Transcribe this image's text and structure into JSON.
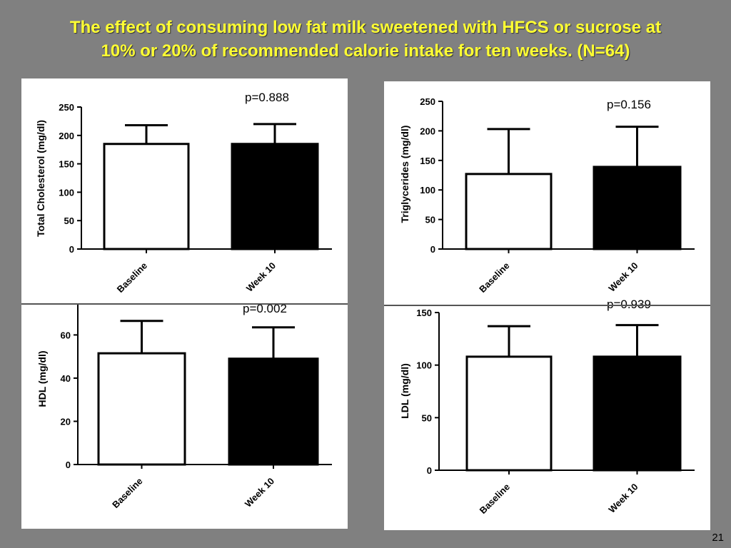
{
  "slide": {
    "title_line1": "The effect of consuming low fat milk sweetened with HFCS or sucrose at",
    "title_line2": "10% or 20% of recommended calorie intake for ten weeks. (N=64)",
    "slide_number": "21",
    "title_color": "#ffff33",
    "background_color": "#808080"
  },
  "chart_data": [
    {
      "type": "bar",
      "ylabel": "Total  Cholesterol (mg/dl)",
      "categories": [
        "Baseline",
        "Week 10"
      ],
      "values": [
        185,
        185
      ],
      "error_upper": [
        218,
        220
      ],
      "bar_colors": [
        "#ffffff",
        "#000000"
      ],
      "ylim": [
        0,
        250
      ],
      "yticks": [
        0,
        50,
        100,
        150,
        200,
        250
      ],
      "annotation": "p=0.888"
    },
    {
      "type": "bar",
      "ylabel": "Triglycerides (mg/dl)",
      "categories": [
        "Baseline",
        "Week 10"
      ],
      "values": [
        127,
        139
      ],
      "error_upper": [
        203,
        207
      ],
      "bar_colors": [
        "#ffffff",
        "#000000"
      ],
      "ylim": [
        0,
        250
      ],
      "yticks": [
        0,
        50,
        100,
        150,
        200,
        250
      ],
      "annotation": "p=0.156"
    },
    {
      "type": "bar",
      "ylabel": "HDL (mg/dl)",
      "categories": [
        "Baseline",
        "Week 10"
      ],
      "values": [
        51.5,
        49
      ],
      "error_upper": [
        66.5,
        63.5
      ],
      "bar_colors": [
        "#ffffff",
        "#000000"
      ],
      "ylim": [
        0,
        75
      ],
      "yticks": [
        0,
        20,
        40,
        60
      ],
      "annotation": "p=0.002"
    },
    {
      "type": "bar",
      "ylabel": "LDL (mg/dl)",
      "categories": [
        "Baseline",
        "Week 10"
      ],
      "values": [
        108,
        108
      ],
      "error_upper": [
        137,
        138
      ],
      "bar_colors": [
        "#ffffff",
        "#000000"
      ],
      "ylim": [
        0,
        150
      ],
      "yticks": [
        0,
        50,
        100,
        150
      ],
      "annotation": "p=0.939"
    }
  ]
}
